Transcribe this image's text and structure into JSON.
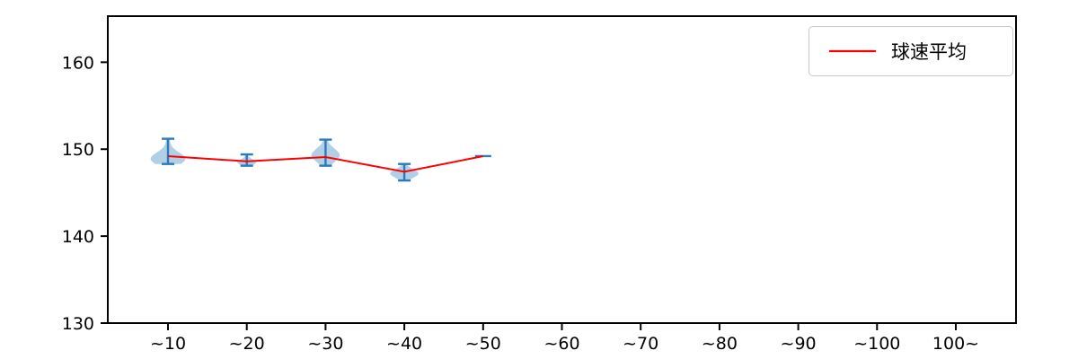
{
  "chart_data": {
    "type": "violin",
    "title": "",
    "xlabel": "",
    "ylabel": "",
    "categories": [
      "~10",
      "~20",
      "~30",
      "~40",
      "~50",
      "~60",
      "~70",
      "~80",
      "~90",
      "~100",
      "100~"
    ],
    "ylim": [
      130,
      165.3
    ],
    "yticks": [
      130,
      140,
      150,
      160
    ],
    "grid": false,
    "legend": {
      "label": "球速平均",
      "position": "upper right"
    },
    "colors": {
      "violin_fill": "#1f77b4",
      "violin_fill_opacity": 0.35,
      "whisker": "#2b7bba",
      "mean_line": "#ff0000",
      "axis": "#000000",
      "background": "#ffffff"
    },
    "violins": [
      {
        "category": "~10",
        "min": 148.3,
        "max": 151.2,
        "mode": 148.9,
        "mean": 149.2,
        "rel_width": 0.44
      },
      {
        "category": "~20",
        "min": 148.1,
        "max": 149.4,
        "mode": 148.5,
        "mean": 148.6,
        "rel_width": 0.24
      },
      {
        "category": "~30",
        "min": 148.1,
        "max": 151.1,
        "mode": 149.3,
        "mean": 149.1,
        "rel_width": 0.36
      },
      {
        "category": "~40",
        "min": 146.4,
        "max": 148.3,
        "mode": 147.2,
        "mean": 147.4,
        "rel_width": 0.36
      },
      {
        "category": "~50",
        "min": 149.2,
        "max": 149.2,
        "mode": 149.2,
        "mean": 149.2,
        "rel_width": 0.1
      }
    ],
    "series": [
      {
        "name": "球速平均",
        "type": "line",
        "color": "#ff0000",
        "x": [
          "~10",
          "~20",
          "~30",
          "~40",
          "~50"
        ],
        "values": [
          149.2,
          148.6,
          149.1,
          147.4,
          149.2
        ]
      }
    ]
  }
}
